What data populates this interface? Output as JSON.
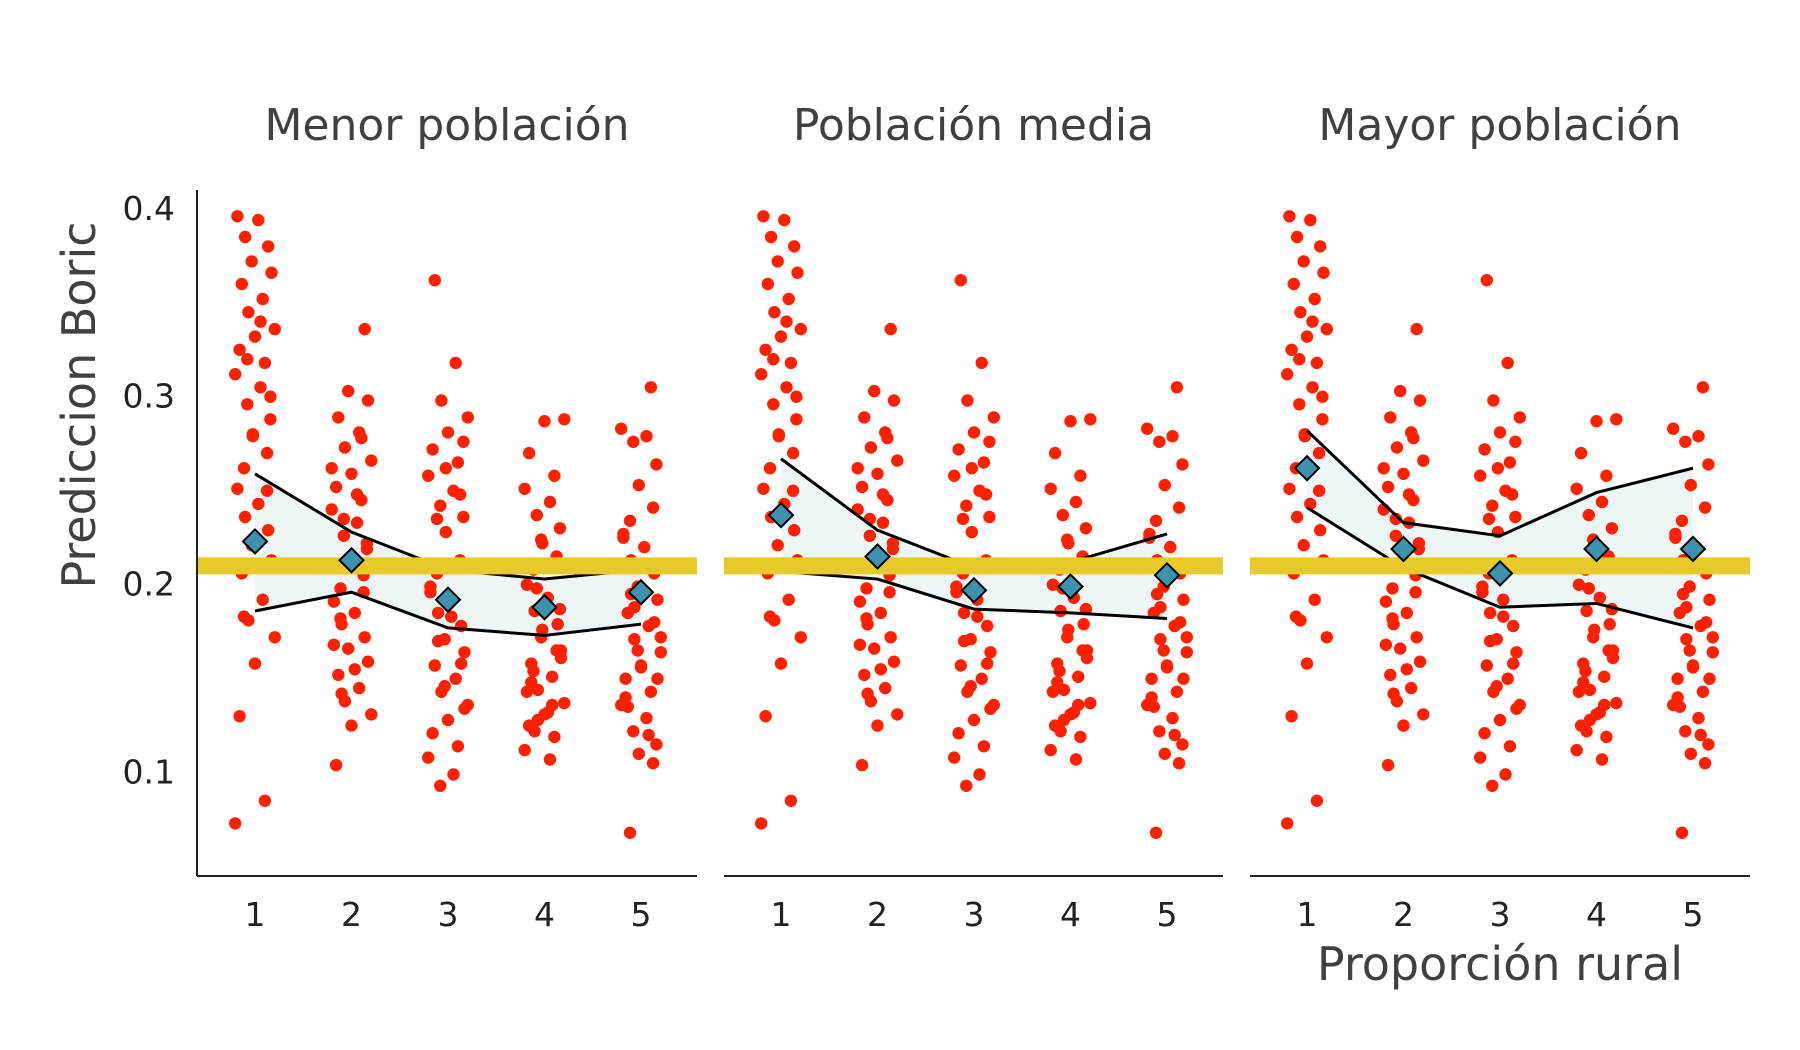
{
  "chart_data": {
    "type": "scatter",
    "xlabel": "Proporción rural",
    "ylabel": "Prediccion Boric",
    "ylim": [
      0.045,
      0.41
    ],
    "y_ticks": [
      0.1,
      0.2,
      0.3,
      0.4
    ],
    "x_ticks": [
      1,
      2,
      3,
      4,
      5
    ],
    "reference_line": 0.21,
    "colors": {
      "points": "#ff2000",
      "reference_line": "#e8c92a",
      "band_fill": "#eef5f7",
      "band_line": "#000000",
      "means": "#3d93ad"
    },
    "panels": [
      {
        "title": "Menor población",
        "means": [
          0.223,
          0.213,
          0.192,
          0.188,
          0.196
        ],
        "band_upper": [
          0.259,
          0.228,
          0.208,
          0.203,
          0.208
        ],
        "band_lower": [
          0.186,
          0.196,
          0.177,
          0.173,
          0.179
        ],
        "points": [
          [
            0.396,
            0.394,
            0.385,
            0.38,
            0.372,
            0.366,
            0.36,
            0.352,
            0.345,
            0.336,
            0.332,
            0.325,
            0.318,
            0.312,
            0.305,
            0.296,
            0.288,
            0.279,
            0.27,
            0.262,
            0.251,
            0.243,
            0.236,
            0.229,
            0.221,
            0.213,
            0.206,
            0.192,
            0.181,
            0.172,
            0.158,
            0.13,
            0.085,
            0.073,
            0.34,
            0.32,
            0.3,
            0.28,
            0.25,
            0.183
          ],
          [
            0.336,
            0.303,
            0.298,
            0.289,
            0.281,
            0.273,
            0.266,
            0.259,
            0.252,
            0.245,
            0.24,
            0.233,
            0.226,
            0.219,
            0.212,
            0.205,
            0.198,
            0.191,
            0.185,
            0.179,
            0.172,
            0.166,
            0.159,
            0.152,
            0.145,
            0.138,
            0.131,
            0.125,
            0.104,
            0.278,
            0.262,
            0.248,
            0.235,
            0.222,
            0.21,
            0.196,
            0.182,
            0.168,
            0.155,
            0.142
          ],
          [
            0.362,
            0.318,
            0.298,
            0.289,
            0.281,
            0.272,
            0.265,
            0.258,
            0.25,
            0.242,
            0.236,
            0.228,
            0.213,
            0.206,
            0.199,
            0.192,
            0.185,
            0.178,
            0.171,
            0.164,
            0.157,
            0.15,
            0.143,
            0.136,
            0.128,
            0.121,
            0.114,
            0.108,
            0.099,
            0.093,
            0.276,
            0.262,
            0.248,
            0.235,
            0.196,
            0.183,
            0.17,
            0.158,
            0.146,
            0.134
          ],
          [
            0.288,
            0.287,
            0.27,
            0.258,
            0.251,
            0.244,
            0.237,
            0.23,
            0.222,
            0.215,
            0.208,
            0.2,
            0.193,
            0.186,
            0.179,
            0.172,
            0.165,
            0.158,
            0.151,
            0.144,
            0.137,
            0.131,
            0.125,
            0.119,
            0.112,
            0.107,
            0.198,
            0.187,
            0.176,
            0.165,
            0.154,
            0.143,
            0.132,
            0.122,
            0.211,
            0.224,
            0.161,
            0.148,
            0.136,
            0.128
          ],
          [
            0.305,
            0.283,
            0.279,
            0.276,
            0.264,
            0.253,
            0.241,
            0.234,
            0.227,
            0.22,
            0.213,
            0.206,
            0.199,
            0.192,
            0.185,
            0.178,
            0.171,
            0.164,
            0.157,
            0.15,
            0.143,
            0.136,
            0.129,
            0.122,
            0.115,
            0.11,
            0.105,
            0.068,
            0.225,
            0.21,
            0.195,
            0.18,
            0.165,
            0.15,
            0.135,
            0.12,
            0.188,
            0.172,
            0.156,
            0.14
          ]
        ]
      },
      {
        "title": "Población media",
        "means": [
          0.237,
          0.215,
          0.197,
          0.199,
          0.205
        ],
        "band_upper": [
          0.267,
          0.229,
          0.209,
          0.212,
          0.227
        ],
        "band_lower": [
          0.207,
          0.203,
          0.187,
          0.185,
          0.182
        ],
        "points": [
          [
            0.396,
            0.394,
            0.385,
            0.38,
            0.372,
            0.366,
            0.36,
            0.352,
            0.345,
            0.336,
            0.332,
            0.325,
            0.318,
            0.312,
            0.305,
            0.296,
            0.288,
            0.279,
            0.27,
            0.262,
            0.251,
            0.243,
            0.236,
            0.229,
            0.221,
            0.213,
            0.206,
            0.192,
            0.181,
            0.172,
            0.158,
            0.13,
            0.085,
            0.073,
            0.34,
            0.32,
            0.3,
            0.28,
            0.25,
            0.183
          ],
          [
            0.336,
            0.303,
            0.298,
            0.289,
            0.281,
            0.273,
            0.266,
            0.259,
            0.252,
            0.245,
            0.24,
            0.233,
            0.226,
            0.219,
            0.212,
            0.205,
            0.198,
            0.191,
            0.185,
            0.179,
            0.172,
            0.166,
            0.159,
            0.152,
            0.145,
            0.138,
            0.131,
            0.125,
            0.104,
            0.278,
            0.262,
            0.248,
            0.235,
            0.222,
            0.21,
            0.196,
            0.182,
            0.168,
            0.155,
            0.142
          ],
          [
            0.362,
            0.318,
            0.298,
            0.289,
            0.281,
            0.272,
            0.265,
            0.258,
            0.25,
            0.242,
            0.236,
            0.228,
            0.213,
            0.206,
            0.199,
            0.192,
            0.185,
            0.178,
            0.171,
            0.164,
            0.157,
            0.15,
            0.143,
            0.136,
            0.128,
            0.121,
            0.114,
            0.108,
            0.099,
            0.093,
            0.276,
            0.262,
            0.248,
            0.235,
            0.196,
            0.183,
            0.17,
            0.158,
            0.146,
            0.134
          ],
          [
            0.288,
            0.287,
            0.27,
            0.258,
            0.251,
            0.244,
            0.237,
            0.23,
            0.222,
            0.215,
            0.208,
            0.2,
            0.193,
            0.186,
            0.179,
            0.172,
            0.165,
            0.158,
            0.151,
            0.144,
            0.137,
            0.131,
            0.125,
            0.119,
            0.112,
            0.107,
            0.198,
            0.187,
            0.176,
            0.165,
            0.154,
            0.143,
            0.132,
            0.122,
            0.211,
            0.224,
            0.161,
            0.148,
            0.136,
            0.128
          ],
          [
            0.305,
            0.283,
            0.279,
            0.276,
            0.264,
            0.253,
            0.241,
            0.234,
            0.227,
            0.22,
            0.213,
            0.206,
            0.199,
            0.192,
            0.185,
            0.178,
            0.171,
            0.164,
            0.157,
            0.15,
            0.143,
            0.136,
            0.129,
            0.122,
            0.115,
            0.11,
            0.105,
            0.068,
            0.225,
            0.21,
            0.195,
            0.18,
            0.165,
            0.15,
            0.135,
            0.12,
            0.188,
            0.172,
            0.156,
            0.14
          ]
        ]
      },
      {
        "title": "Mayor población",
        "means": [
          0.262,
          0.219,
          0.206,
          0.219,
          0.219
        ],
        "band_upper": [
          0.282,
          0.233,
          0.226,
          0.249,
          0.262
        ],
        "band_lower": [
          0.241,
          0.209,
          0.188,
          0.19,
          0.177
        ],
        "points": [
          [
            0.396,
            0.394,
            0.385,
            0.38,
            0.372,
            0.366,
            0.36,
            0.352,
            0.345,
            0.336,
            0.332,
            0.325,
            0.318,
            0.312,
            0.305,
            0.296,
            0.288,
            0.279,
            0.27,
            0.262,
            0.251,
            0.243,
            0.236,
            0.229,
            0.221,
            0.213,
            0.206,
            0.192,
            0.181,
            0.172,
            0.158,
            0.13,
            0.085,
            0.073,
            0.34,
            0.32,
            0.3,
            0.28,
            0.25,
            0.183
          ],
          [
            0.336,
            0.303,
            0.298,
            0.289,
            0.281,
            0.273,
            0.266,
            0.259,
            0.252,
            0.245,
            0.24,
            0.233,
            0.226,
            0.219,
            0.212,
            0.205,
            0.198,
            0.191,
            0.185,
            0.179,
            0.172,
            0.166,
            0.159,
            0.152,
            0.145,
            0.138,
            0.131,
            0.125,
            0.104,
            0.278,
            0.262,
            0.248,
            0.235,
            0.222,
            0.21,
            0.196,
            0.182,
            0.168,
            0.155,
            0.142
          ],
          [
            0.362,
            0.318,
            0.298,
            0.289,
            0.281,
            0.272,
            0.265,
            0.258,
            0.25,
            0.242,
            0.236,
            0.228,
            0.213,
            0.206,
            0.199,
            0.192,
            0.185,
            0.178,
            0.171,
            0.164,
            0.157,
            0.15,
            0.143,
            0.136,
            0.128,
            0.121,
            0.114,
            0.108,
            0.099,
            0.093,
            0.276,
            0.262,
            0.248,
            0.235,
            0.196,
            0.183,
            0.17,
            0.158,
            0.146,
            0.134
          ],
          [
            0.288,
            0.287,
            0.27,
            0.258,
            0.251,
            0.244,
            0.237,
            0.23,
            0.222,
            0.215,
            0.208,
            0.2,
            0.193,
            0.186,
            0.179,
            0.172,
            0.165,
            0.158,
            0.151,
            0.144,
            0.137,
            0.131,
            0.125,
            0.119,
            0.112,
            0.107,
            0.198,
            0.187,
            0.176,
            0.165,
            0.154,
            0.143,
            0.132,
            0.122,
            0.211,
            0.224,
            0.161,
            0.148,
            0.136,
            0.128
          ],
          [
            0.305,
            0.283,
            0.279,
            0.276,
            0.264,
            0.253,
            0.241,
            0.234,
            0.227,
            0.22,
            0.213,
            0.206,
            0.199,
            0.192,
            0.185,
            0.178,
            0.171,
            0.164,
            0.157,
            0.15,
            0.143,
            0.136,
            0.129,
            0.122,
            0.115,
            0.11,
            0.105,
            0.068,
            0.225,
            0.21,
            0.195,
            0.18,
            0.165,
            0.15,
            0.135,
            0.12,
            0.188,
            0.172,
            0.156,
            0.14
          ]
        ]
      }
    ]
  }
}
